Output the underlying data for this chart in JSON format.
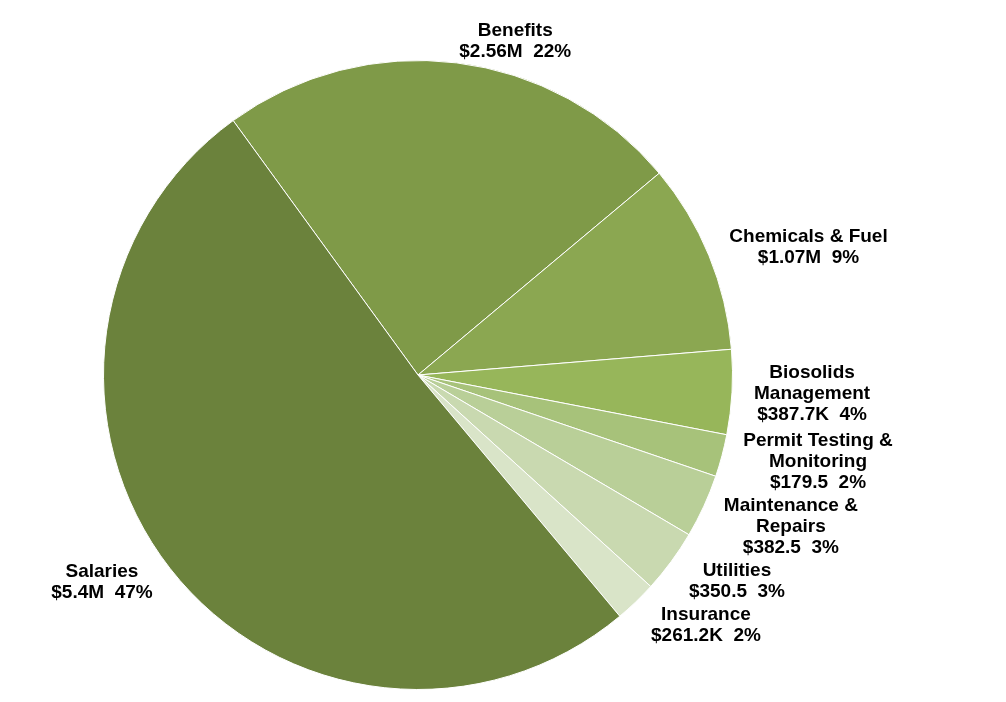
{
  "chart_data": {
    "type": "pie",
    "categories": [
      "Benefits",
      "Chemicals & Fuel",
      "Biosolids Management",
      "Permit Testing & Monitoring",
      "Maintenance & Repairs",
      "Utilities",
      "Insurance",
      "Salaries"
    ],
    "values": [
      22,
      9,
      4,
      2,
      3,
      3,
      2,
      47
    ],
    "colors": [
      "#7f9a48",
      "#8ba751",
      "#97b65a",
      "#a7c27a",
      "#b9cf98",
      "#c9d9b0",
      "#d9e4c8",
      "#6b823c"
    ],
    "value_labels": [
      "$2.56M  22%",
      "$1.07M  9%",
      "$387.7K  4%",
      "$179.5  2%",
      "$382.5  3%",
      "$350.5  3%",
      "$261.2K  2%",
      "$5.4M  47%"
    ]
  }
}
